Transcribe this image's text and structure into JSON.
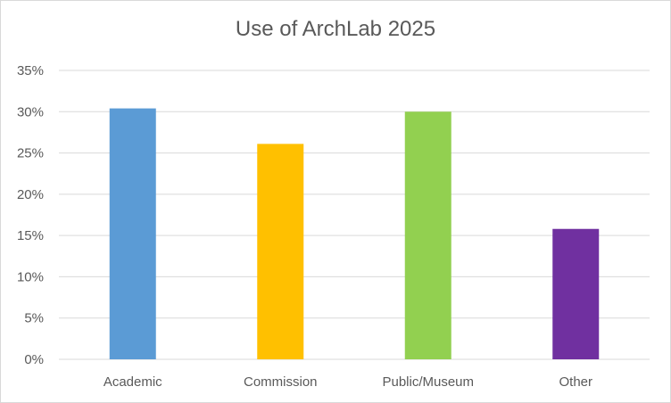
{
  "chart_data": {
    "type": "bar",
    "title": "Use of ArchLab 2025",
    "categories": [
      "Academic",
      "Commission",
      "Public/Museum",
      "Other"
    ],
    "values": [
      0.304,
      0.261,
      0.3,
      0.158
    ],
    "colors": [
      "#5B9BD5",
      "#FFC000",
      "#92D050",
      "#7030A0"
    ],
    "yticks": [
      "0%",
      "5%",
      "10%",
      "15%",
      "20%",
      "25%",
      "30%",
      "35%"
    ],
    "ylim": [
      0,
      0.35
    ],
    "grid": true,
    "legend": "none"
  }
}
